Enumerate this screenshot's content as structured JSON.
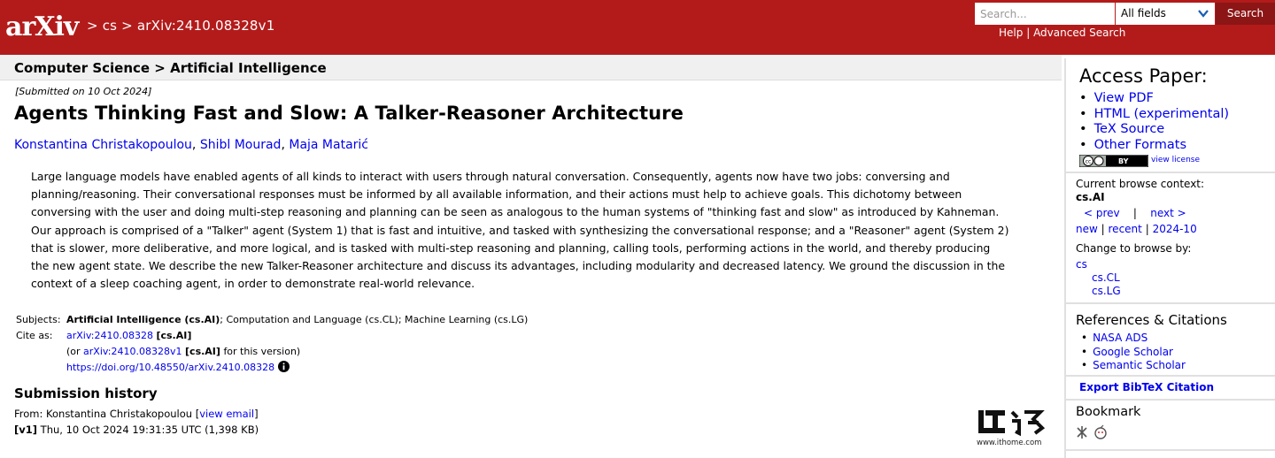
{
  "header": {
    "logo_text": "arXiv",
    "breadcrumb": "> cs > arXiv:2410.08328v1",
    "search_placeholder": "Search...",
    "search_field": "All fields",
    "search_button": "Search",
    "help": "Help",
    "divider": "|",
    "advanced_search": "Advanced Search"
  },
  "subject_header": "Computer Science > Artificial Intelligence",
  "paper": {
    "submitted": "[Submitted on 10 Oct 2024]",
    "title": "Agents Thinking Fast and Slow: A Talker-Reasoner Architecture",
    "authors": [
      "Konstantina Christakopoulou",
      "Shibl Mourad",
      "Maja Matarić"
    ],
    "author_sep": ",",
    "abstract_lines": [
      "Large language models have enabled agents of all kinds to interact with users through natural conversation. Consequently, agents now have two jobs: conversing and",
      "planning/reasoning. Their conversational responses must be informed by all available information, and their actions must help to achieve goals. This dichotomy between",
      "conversing with the user and doing multi-step reasoning and planning can be seen as analogous to the human systems of \"thinking fast and slow\" as introduced by Kahneman.",
      "Our approach is comprised of a \"Talker\" agent (System 1) that is fast and intuitive, and tasked with synthesizing the conversational response; and a \"Reasoner\" agent (System 2)",
      "that is slower, more deliberative, and more logical, and is tasked with multi-step reasoning and planning, calling tools, performing actions in the world, and thereby producing",
      "the new agent state. We describe the new Talker-Reasoner architecture and discuss its advantages, including modularity and decreased latency. We ground the discussion in the",
      "context of a sleep coaching agent, in order to demonstrate real-world relevance."
    ]
  },
  "meta": {
    "subjects_label": "Subjects:",
    "subjects_primary": "Artificial Intelligence (cs.AI)",
    "subjects_rest": "; Computation and Language (cs.CL); Machine Learning (cs.LG)",
    "cite_label": "Cite as:",
    "cite_id": "arXiv:2410.08328",
    "cite_cat": "[cs.AI]",
    "cite_or": "(or",
    "cite_version_id": "arXiv:2410.08328v1",
    "cite_version_cat": "[cs.AI]",
    "cite_version_tail": "for this version)",
    "doi": "https://doi.org/10.48550/arXiv.2410.08328"
  },
  "history": {
    "heading": "Submission history",
    "from_prefix": "From: Konstantina Christakopoulou [",
    "view_email": "view email",
    "from_suffix": "]",
    "version_tag": "[v1]",
    "version_info": "Thu, 10 Oct 2024 19:31:35 UTC (1,398 KB)"
  },
  "sidebar": {
    "access_heading": "Access Paper:",
    "access_links": [
      "View PDF",
      "HTML (experimental)",
      "TeX Source",
      "Other Formats"
    ],
    "license_badge": "BY",
    "view_license": "view license",
    "context_label": "Current browse context:",
    "context_value": "cs.AI",
    "prev": "< prev",
    "nav_sep": "|",
    "next": "next >",
    "new": "new",
    "recent": "recent",
    "month": "2024-10",
    "change_label": "Change to browse by:",
    "browse_cs": "cs",
    "browse_sub": [
      "cs.CL",
      "cs.LG"
    ],
    "refs_heading": "References & Citations",
    "refs_links": [
      "NASA ADS",
      "Google Scholar",
      "Semantic Scholar"
    ],
    "bibtex": "Export BibTeX Citation",
    "bookmark_heading": "Bookmark"
  },
  "watermark": {
    "text": "www.ithome.com"
  },
  "colors": {
    "header_bg": "#B31B1B",
    "search_button_bg": "#8C1515",
    "link": "#0000EE"
  }
}
